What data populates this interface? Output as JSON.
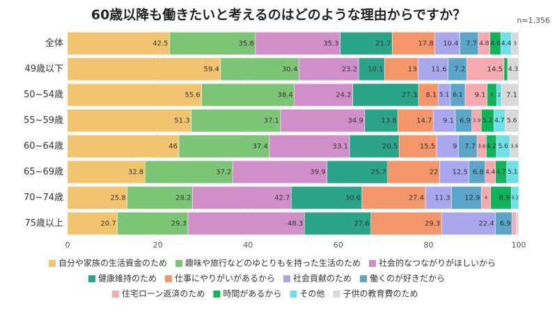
{
  "chart_data": {
    "type": "bar",
    "orientation": "horizontal",
    "stacked": "normalized",
    "title": "60歳以降も働きたいと考えるのはどのような理由からですか？",
    "note": "n=1,356",
    "categories": [
      "全体",
      "49歳以下",
      "50~54歳",
      "55~59歳",
      "60~64歳",
      "65~69歳",
      "70~74歳",
      "75歳以上"
    ],
    "xlim": [
      0,
      100
    ],
    "xticks": [
      0,
      20,
      40,
      60,
      80,
      100
    ],
    "grid": true,
    "series": [
      {
        "name": "自分や家族の生活資金のため",
        "color": "#f2c46f",
        "values": [
          42.5,
          59.4,
          55.6,
          51.3,
          46,
          32.8,
          25.8,
          20.7
        ]
      },
      {
        "name": "趣味や旅行などのゆとりもを持った生活のため",
        "color": "#7cc576",
        "values": [
          35.8,
          30.4,
          38.4,
          37.1,
          37.4,
          37.2,
          28.2,
          29.3
        ]
      },
      {
        "name": "社会的なつながりがほしいから",
        "color": "#d08fc8",
        "values": [
          35.3,
          23.2,
          24.2,
          34.9,
          33.1,
          39.9,
          42.7,
          48.3
        ]
      },
      {
        "name": "健康維持のため",
        "color": "#2aa58a",
        "values": [
          21.7,
          10.1,
          27.3,
          13.8,
          20.5,
          25.7,
          30.6,
          27.6
        ]
      },
      {
        "name": "仕事にやりがいがあるから",
        "color": "#f4956a",
        "values": [
          17.8,
          13,
          8.1,
          14.7,
          15.5,
          22,
          27.4,
          29.3
        ]
      },
      {
        "name": "社会貢献のため",
        "color": "#a9a8ef",
        "values": [
          10.4,
          11.6,
          5.1,
          9.1,
          9,
          12.5,
          11.3,
          22.4
        ]
      },
      {
        "name": "働くのが好きだから",
        "color": "#5aa6c8",
        "values": [
          7.7,
          7.2,
          6.1,
          6.9,
          7.7,
          6.8,
          12.9,
          6.9
        ]
      },
      {
        "name": "住宅ローン返済のため",
        "color": "#f6a9ae",
        "values": [
          4.8,
          14.5,
          9.1,
          3.9,
          3.8,
          4.4,
          4,
          1.7
        ],
        "value_labels": [
          "4.8",
          "14.5",
          "9.1",
          "3.9",
          "3.8",
          "4.4",
          "4",
          null
        ]
      },
      {
        "name": "時間があるから",
        "color": "#10b45a",
        "values": [
          4.6,
          1.4,
          4,
          5.2,
          4.2,
          4.7,
          8.9,
          0
        ],
        "value_labels": [
          "4.6",
          null,
          "4",
          "5.2",
          "4.2",
          "4.7",
          "8.9",
          null
        ]
      },
      {
        "name": "その他",
        "color": "#6ee0e8",
        "values": [
          4.4,
          0,
          2,
          4.7,
          5.6,
          5.1,
          3.2,
          0
        ],
        "value_labels": [
          "4.4",
          null,
          "2",
          "4.7",
          "5.6",
          "5.1",
          "3.2",
          null
        ]
      },
      {
        "name": "子供の教育費のため",
        "color": "#d9d9d9",
        "values": [
          3,
          4.3,
          7.1,
          5.6,
          3.6,
          0,
          0,
          1
        ],
        "value_labels": [
          "3",
          "4.3",
          "7.1",
          "5.6",
          "3.6",
          null,
          null,
          null
        ]
      }
    ]
  }
}
